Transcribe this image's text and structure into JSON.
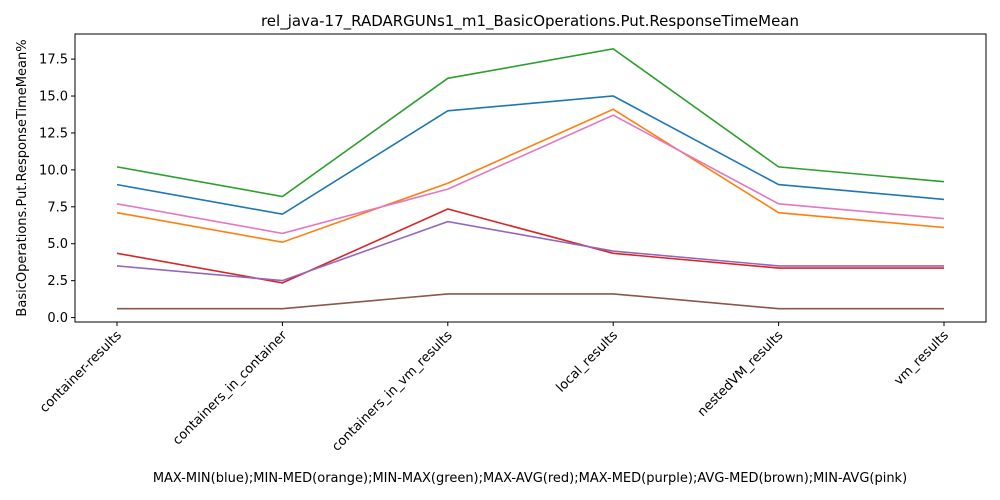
{
  "chart_data": {
    "type": "line",
    "title": "rel_java-17_RADARGUNs1_m1_BasicOperations.Put.ResponseTimeMean",
    "xlabel": "MAX-MIN(blue);MIN-MED(orange);MIN-MAX(green);MAX-AVG(red);MAX-MED(purple);AVG-MED(brown);MIN-AVG(pink)",
    "ylabel": "BasicOperations.Put.ResponseTimeMean%",
    "categories": [
      "container-results",
      "containers_in_container",
      "containers_in_vm_results",
      "local_results",
      "nestedVM_results",
      "vm_results"
    ],
    "yticks": [
      "0.0",
      "2.5",
      "5.0",
      "7.5",
      "10.0",
      "12.5",
      "15.0",
      "17.5"
    ],
    "ylim": [
      -0.3,
      19.2
    ],
    "grid": false,
    "legend": "none",
    "series": [
      {
        "color": "#1f77b4",
        "values": [
          9.0,
          7.0,
          14.0,
          15.0,
          9.0,
          8.0
        ]
      },
      {
        "color": "#ff7f0e",
        "values": [
          7.1,
          5.1,
          9.1,
          14.1,
          7.1,
          6.1
        ]
      },
      {
        "color": "#2ca02c",
        "values": [
          10.2,
          8.2,
          16.2,
          18.2,
          10.2,
          9.2
        ]
      },
      {
        "color": "#d62728",
        "values": [
          4.35,
          2.35,
          7.35,
          4.35,
          3.35,
          3.35
        ]
      },
      {
        "color": "#9467bd",
        "values": [
          3.5,
          2.5,
          6.5,
          4.5,
          3.5,
          3.5
        ]
      },
      {
        "color": "#8c564b",
        "values": [
          0.6,
          0.6,
          1.6,
          1.6,
          0.6,
          0.6
        ]
      },
      {
        "color": "#e377c2",
        "values": [
          7.7,
          5.7,
          8.7,
          13.7,
          7.7,
          6.7
        ]
      }
    ]
  }
}
